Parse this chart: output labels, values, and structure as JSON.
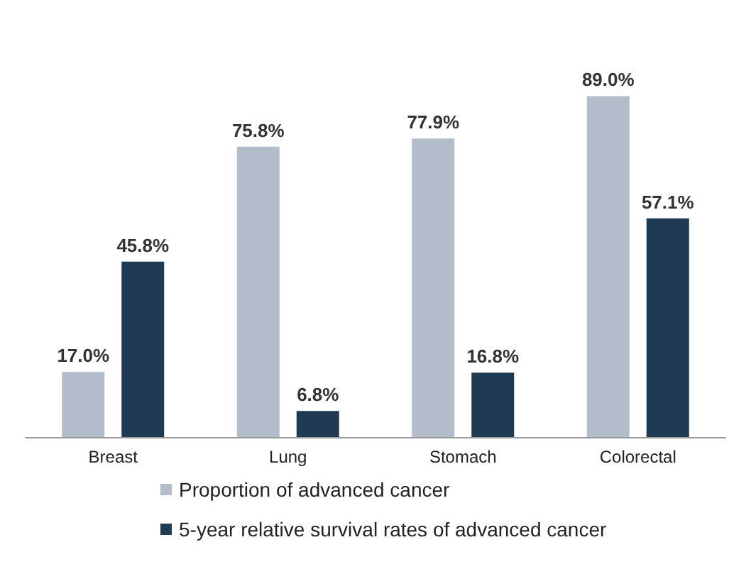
{
  "chart_data": {
    "type": "bar",
    "categories": [
      "Breast",
      "Lung",
      "Stomach",
      "Colorectal"
    ],
    "series": [
      {
        "name": "Proportion of advanced cancer",
        "color": "#b3bccb",
        "values": [
          17.0,
          75.8,
          77.9,
          89.0
        ],
        "value_labels": [
          "17.0%",
          "75.8%",
          "77.9%",
          "89.0%"
        ]
      },
      {
        "name": "5-year relative survival rates of advanced cancer",
        "color": "#1e3b53",
        "values": [
          45.8,
          6.8,
          16.8,
          57.1
        ],
        "value_labels": [
          "45.8%",
          "6.8%",
          "16.8%",
          "57.1%"
        ]
      }
    ],
    "legend": "bottom"
  }
}
